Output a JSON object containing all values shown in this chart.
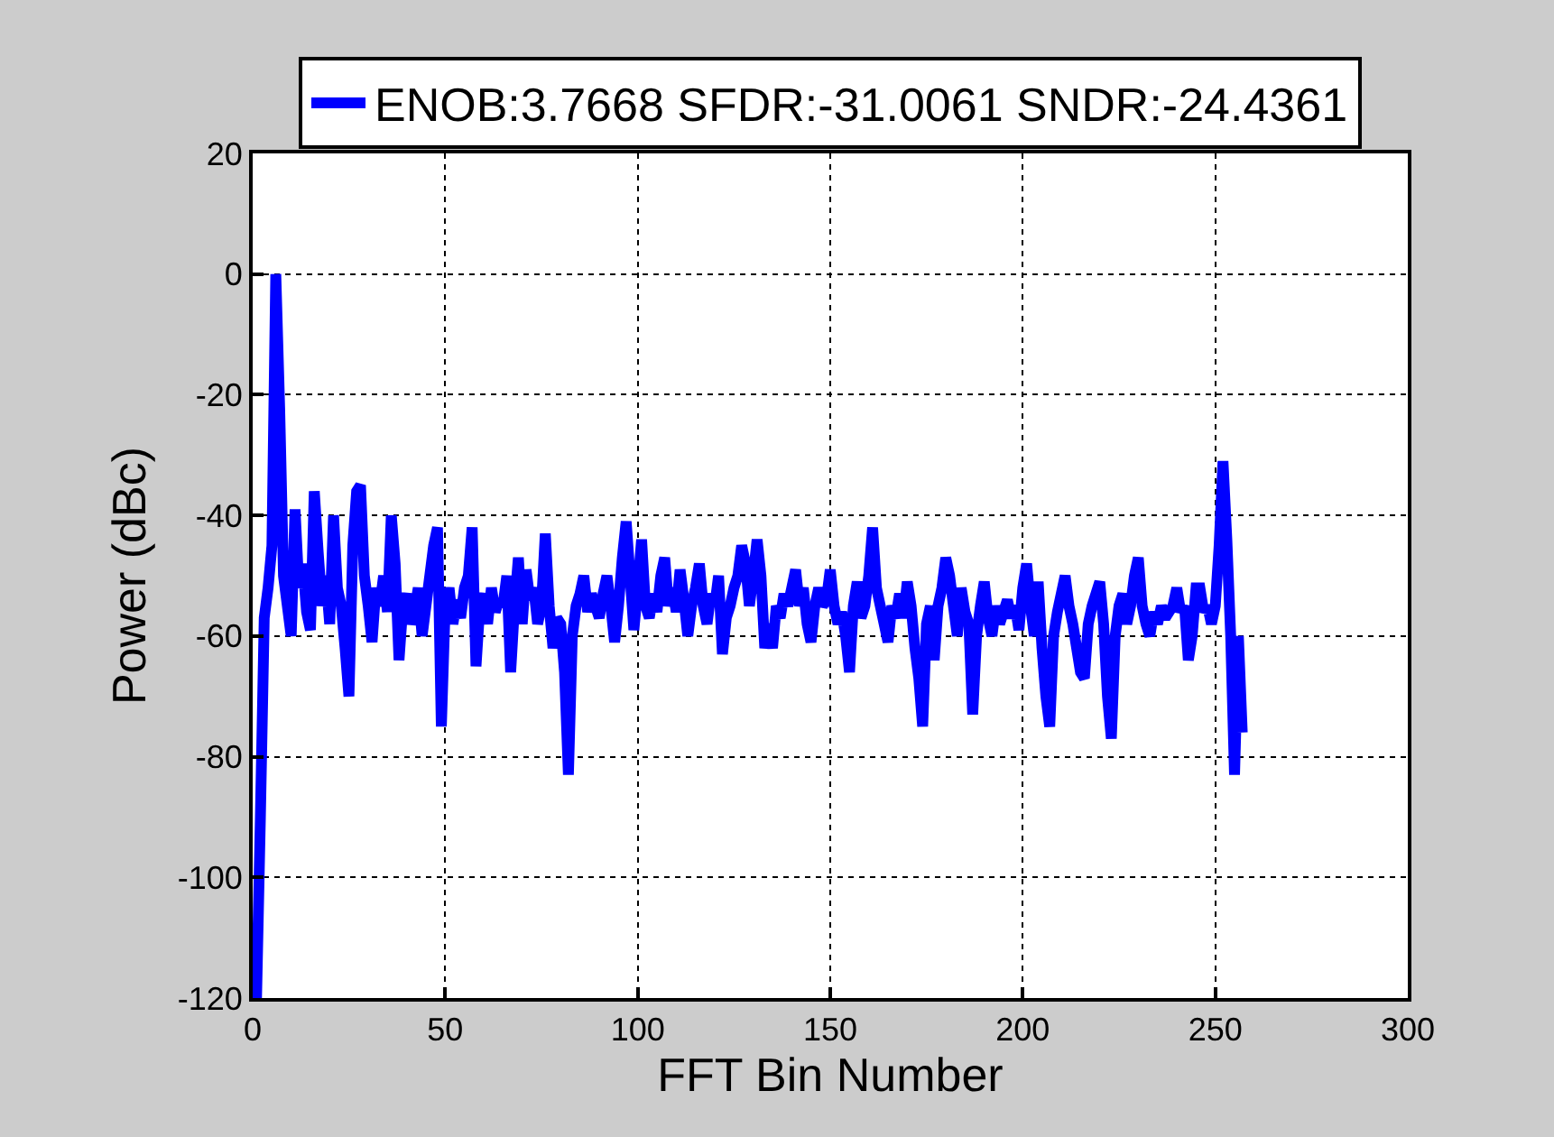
{
  "chart_data": {
    "type": "line",
    "xlabel": "FFT Bin Number",
    "ylabel": "Power (dBc)",
    "xlim": [
      0,
      300
    ],
    "xticks": [
      0,
      50,
      100,
      150,
      200,
      250,
      300
    ],
    "ylim": [
      -120,
      20
    ],
    "yticks": [
      -120,
      -100,
      -80,
      -60,
      -40,
      -20,
      0,
      20
    ],
    "grid": true,
    "legend": "top",
    "line_style": "solid",
    "x": [
      1,
      2,
      3,
      4,
      5,
      6,
      7,
      8,
      9,
      10,
      11,
      12,
      13,
      14,
      15,
      16,
      17,
      18,
      19,
      20,
      21,
      22,
      23,
      24,
      25,
      26,
      27,
      28,
      29,
      30,
      31,
      32,
      33,
      34,
      35,
      36,
      37,
      38,
      39,
      40,
      41,
      42,
      43,
      44,
      45,
      46,
      47,
      48,
      49,
      50,
      51,
      52,
      53,
      54,
      55,
      56,
      57,
      58,
      59,
      60,
      61,
      62,
      63,
      64,
      65,
      66,
      67,
      68,
      69,
      70,
      71,
      72,
      73,
      74,
      75,
      76,
      77,
      78,
      79,
      80,
      81,
      82,
      83,
      84,
      85,
      86,
      87,
      88,
      89,
      90,
      91,
      92,
      93,
      94,
      95,
      96,
      97,
      98,
      99,
      100,
      101,
      102,
      103,
      104,
      105,
      106,
      107,
      108,
      109,
      110,
      111,
      112,
      113,
      114,
      115,
      116,
      117,
      118,
      119,
      120,
      121,
      122,
      123,
      124,
      125,
      126,
      127,
      128,
      129,
      130,
      131,
      132,
      133,
      134,
      135,
      136,
      137,
      138,
      139,
      140,
      141,
      142,
      143,
      144,
      145,
      146,
      147,
      148,
      149,
      150,
      151,
      152,
      153,
      154,
      155,
      156,
      157,
      158,
      159,
      160,
      161,
      162,
      163,
      164,
      165,
      166,
      167,
      168,
      169,
      170,
      171,
      172,
      173,
      174,
      175,
      176,
      177,
      178,
      179,
      180,
      181,
      182,
      183,
      184,
      185,
      186,
      187,
      188,
      189,
      190,
      191,
      192,
      193,
      194,
      195,
      196,
      197,
      198,
      199,
      200,
      201,
      202,
      203,
      204,
      205,
      206,
      207,
      208,
      209,
      210,
      211,
      212,
      213,
      214,
      215,
      216,
      217,
      218,
      219,
      220,
      221,
      222,
      223,
      224,
      225,
      226,
      227,
      228,
      229,
      230,
      231,
      232,
      233,
      234,
      235,
      236,
      237,
      238,
      239,
      240,
      241,
      242,
      243,
      244,
      245,
      246,
      247,
      248,
      249,
      250,
      251,
      252,
      253,
      254,
      255,
      256,
      257
    ],
    "series": [
      {
        "name": "ENOB:3.7668 SFDR:-31.0061 SNDR:-24.4361",
        "color": "#0000ff",
        "values": [
          -120,
          -90,
          -57,
          -52,
          -45,
          0,
          -22,
          -50,
          -55,
          -60,
          -39,
          -52,
          -48,
          -56,
          -59,
          -36,
          -46,
          -55,
          -50,
          -58,
          -40,
          -52,
          -55,
          -62,
          -70,
          -45,
          -36,
          -35,
          -50,
          -55,
          -61,
          -52,
          -55,
          -50,
          -56,
          -40,
          -48,
          -64,
          -55,
          -53,
          -58,
          -56,
          -52,
          -60,
          -55,
          -50,
          -45,
          -42,
          -75,
          -55,
          -52,
          -58,
          -54,
          -57,
          -52,
          -50,
          -42,
          -65,
          -55,
          -53,
          -58,
          -52,
          -56,
          -54,
          -55,
          -50,
          -66,
          -55,
          -47,
          -58,
          -49,
          -54,
          -52,
          -58,
          -55,
          -43,
          -55,
          -62,
          -57,
          -58,
          -66,
          -83,
          -60,
          -55,
          -53,
          -50,
          -56,
          -53,
          -55,
          -57,
          -53,
          -50,
          -55,
          -61,
          -55,
          -47,
          -41,
          -50,
          -59,
          -52,
          -44,
          -55,
          -57,
          -53,
          -56,
          -50,
          -47,
          -55,
          -52,
          -56,
          -49,
          -54,
          -60,
          -55,
          -52,
          -48,
          -55,
          -58,
          -53,
          -55,
          -50,
          -63,
          -57,
          -55,
          -52,
          -50,
          -45,
          -48,
          -55,
          -50,
          -44,
          -50,
          -62,
          -58,
          -62,
          -55,
          -57,
          -53,
          -55,
          -52,
          -49,
          -55,
          -52,
          -58,
          -61,
          -55,
          -52,
          -55,
          -54,
          -49,
          -55,
          -58,
          -56,
          -60,
          -66,
          -55,
          -51,
          -57,
          -55,
          -50,
          -42,
          -52,
          -55,
          -58,
          -61,
          -55,
          -57,
          -53,
          -57,
          -51,
          -55,
          -62,
          -67,
          -75,
          -58,
          -55,
          -64,
          -55,
          -52,
          -47,
          -50,
          -55,
          -60,
          -52,
          -56,
          -58,
          -73,
          -60,
          -55,
          -51,
          -57,
          -60,
          -55,
          -58,
          -56,
          -54,
          -57,
          -55,
          -59,
          -52,
          -48,
          -55,
          -60,
          -51,
          -62,
          -70,
          -75,
          -60,
          -56,
          -53,
          -50,
          -55,
          -58,
          -62,
          -66,
          -67,
          -58,
          -55,
          -53,
          -51,
          -58,
          -70,
          -77,
          -60,
          -55,
          -53,
          -58,
          -55,
          -50,
          -47,
          -55,
          -58,
          -60,
          -56,
          -58,
          -55,
          -57,
          -56,
          -55,
          -52,
          -56,
          -55,
          -64,
          -60,
          -52,
          -52,
          -56,
          -55,
          -58,
          -55,
          -45,
          -31,
          -44,
          -60,
          -83,
          -60,
          -76
        ]
      }
    ]
  }
}
